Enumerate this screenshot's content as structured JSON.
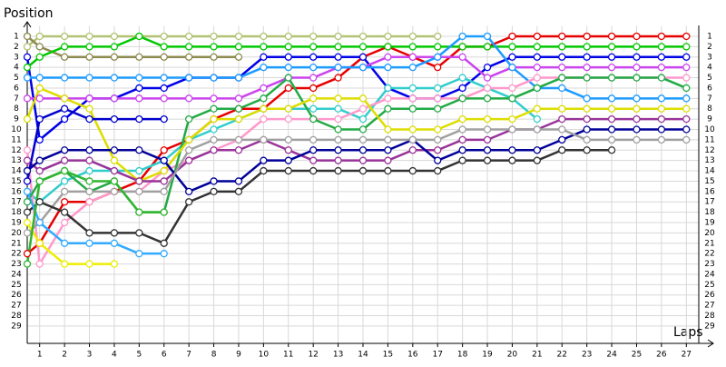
{
  "chart_data": {
    "type": "line",
    "y_label": "Position",
    "x_label": "Laps",
    "x": [
      0.5,
      1,
      2,
      3,
      4,
      5,
      6,
      7,
      8,
      9,
      10,
      11,
      12,
      13,
      14,
      15,
      16,
      17,
      18,
      19,
      20,
      21,
      22,
      23,
      24,
      25,
      26,
      27
    ],
    "xlim": [
      0.5,
      27.5
    ],
    "xticks": [
      1,
      2,
      3,
      4,
      5,
      6,
      7,
      8,
      9,
      10,
      11,
      12,
      13,
      14,
      15,
      16,
      17,
      18,
      19,
      20,
      21,
      22,
      23,
      24,
      25,
      26,
      27
    ],
    "ylim": [
      0,
      30.5
    ],
    "y_reversed": true,
    "yticks": [
      1,
      2,
      3,
      4,
      5,
      6,
      7,
      8,
      9,
      10,
      11,
      12,
      13,
      14,
      15,
      16,
      17,
      18,
      19,
      20,
      21,
      22,
      23,
      24,
      25,
      26,
      27,
      28,
      29
    ],
    "grid": true,
    "series": [
      {
        "color": "#b2c273",
        "values": [
          2,
          1,
          1,
          1,
          1,
          1,
          1,
          1,
          1,
          1,
          1,
          1,
          1,
          1,
          1,
          1,
          1,
          1,
          null,
          null,
          null,
          null,
          null,
          null,
          null,
          null,
          null,
          null
        ]
      },
      {
        "color": "#8c8a4e",
        "values": [
          1,
          2,
          3,
          3,
          3,
          3,
          3,
          3,
          3,
          3,
          null,
          null,
          null,
          null,
          null,
          null,
          null,
          null,
          null,
          null,
          null,
          null,
          null,
          null,
          null,
          null,
          null,
          null
        ]
      },
      {
        "color": "#e60000",
        "values": [
          22,
          21,
          17,
          17,
          16,
          15,
          12,
          11,
          9,
          8,
          8,
          6,
          6,
          5,
          3,
          2,
          3,
          4,
          2,
          2,
          1,
          1,
          1,
          1,
          1,
          1,
          1,
          1
        ]
      },
      {
        "color": "#00c800",
        "values": [
          4,
          3,
          2,
          2,
          2,
          1,
          2,
          2,
          2,
          2,
          2,
          2,
          2,
          2,
          2,
          2,
          2,
          2,
          2,
          2,
          2,
          2,
          2,
          2,
          2,
          2,
          2,
          2
        ]
      },
      {
        "color": "#0000e6",
        "values": [
          3,
          11,
          9,
          7,
          7,
          6,
          6,
          5,
          5,
          5,
          3,
          3,
          3,
          3,
          3,
          6,
          7,
          7,
          6,
          4,
          3,
          3,
          3,
          3,
          3,
          3,
          3,
          3
        ]
      },
      {
        "color": "#cc44ee",
        "values": [
          7,
          7,
          7,
          7,
          7,
          7,
          7,
          7,
          7,
          7,
          6,
          5,
          5,
          4,
          4,
          3,
          3,
          3,
          3,
          5,
          4,
          4,
          4,
          4,
          4,
          4,
          4,
          4
        ]
      },
      {
        "color": "#1e9bff",
        "values": [
          5,
          5,
          5,
          5,
          5,
          5,
          5,
          5,
          5,
          5,
          4,
          4,
          4,
          4,
          4,
          4,
          4,
          3,
          1,
          1,
          4,
          6,
          6,
          7,
          7,
          7,
          7,
          7
        ]
      },
      {
        "color": "#33cccc",
        "values": [
          16,
          17,
          15,
          14,
          14,
          14,
          13,
          11,
          10,
          9,
          8,
          8,
          8,
          8,
          9,
          6,
          6,
          6,
          5,
          6,
          7,
          9,
          null,
          null,
          null,
          null,
          null,
          null
        ]
      },
      {
        "color": "#ff99cc",
        "values": [
          12,
          23,
          19,
          17,
          16,
          16,
          14,
          13,
          12,
          11,
          9,
          9,
          9,
          9,
          8,
          7,
          7,
          7,
          7,
          6,
          6,
          5,
          5,
          5,
          5,
          5,
          5,
          5
        ]
      },
      {
        "color": "#22aa44",
        "values": [
          17,
          15,
          14,
          16,
          15,
          18,
          18,
          9,
          8,
          8,
          7,
          5,
          9,
          10,
          10,
          8,
          8,
          8,
          7,
          7,
          7,
          6,
          5,
          5,
          5,
          5,
          5,
          6
        ]
      },
      {
        "color": "#dddd00",
        "values": [
          9,
          6,
          7,
          8,
          13,
          15,
          14,
          11,
          9,
          9,
          8,
          8,
          7,
          7,
          7,
          10,
          10,
          10,
          9,
          9,
          9,
          8,
          8,
          8,
          8,
          8,
          8,
          8
        ]
      },
      {
        "color": "#993399",
        "values": [
          13,
          14,
          13,
          13,
          14,
          15,
          15,
          13,
          12,
          12,
          11,
          12,
          13,
          13,
          13,
          13,
          12,
          12,
          11,
          11,
          10,
          10,
          9,
          9,
          9,
          9,
          9,
          9
        ]
      },
      {
        "color": "#000099",
        "values": [
          14,
          13,
          12,
          12,
          12,
          12,
          13,
          16,
          15,
          15,
          13,
          13,
          12,
          12,
          12,
          12,
          11,
          13,
          12,
          12,
          12,
          12,
          11,
          10,
          10,
          10,
          10,
          10
        ]
      },
      {
        "color": "#a0a0a0",
        "values": [
          20,
          19,
          16,
          16,
          16,
          16,
          16,
          12,
          11,
          11,
          11,
          11,
          11,
          11,
          11,
          11,
          11,
          11,
          10,
          10,
          10,
          10,
          10,
          11,
          11,
          11,
          11,
          11
        ]
      },
      {
        "color": "#333333",
        "values": [
          18,
          17,
          18,
          20,
          20,
          20,
          21,
          17,
          16,
          16,
          14,
          14,
          14,
          14,
          14,
          14,
          14,
          14,
          13,
          13,
          13,
          13,
          12,
          12,
          12,
          null,
          null,
          null
        ]
      },
      {
        "color": "#0000cc",
        "values": [
          15,
          9,
          8,
          9,
          9,
          9,
          9,
          null,
          null,
          null,
          null,
          null,
          null,
          null,
          null,
          null,
          null,
          null,
          null,
          null,
          null,
          null,
          null,
          null,
          null,
          null,
          null,
          null
        ]
      },
      {
        "color": "#33aaff",
        "values": [
          16,
          19,
          21,
          21,
          21,
          22,
          22,
          null,
          null,
          null,
          null,
          null,
          null,
          null,
          null,
          null,
          null,
          null,
          null,
          null,
          null,
          null,
          null,
          null,
          null,
          null,
          null,
          null
        ]
      },
      {
        "color": "#eeee00",
        "values": [
          19,
          21,
          23,
          23,
          23,
          null,
          null,
          null,
          null,
          null,
          null,
          null,
          null,
          null,
          null,
          null,
          null,
          null,
          null,
          null,
          null,
          null,
          null,
          null,
          null,
          null,
          null,
          null
        ]
      },
      {
        "color": "#2fb52f",
        "values": [
          23,
          15,
          14,
          15,
          15,
          18,
          18,
          null,
          null,
          null,
          null,
          null,
          null,
          null,
          null,
          null,
          null,
          null,
          null,
          null,
          null,
          null,
          null,
          null,
          null,
          null,
          null,
          null
        ]
      }
    ]
  }
}
